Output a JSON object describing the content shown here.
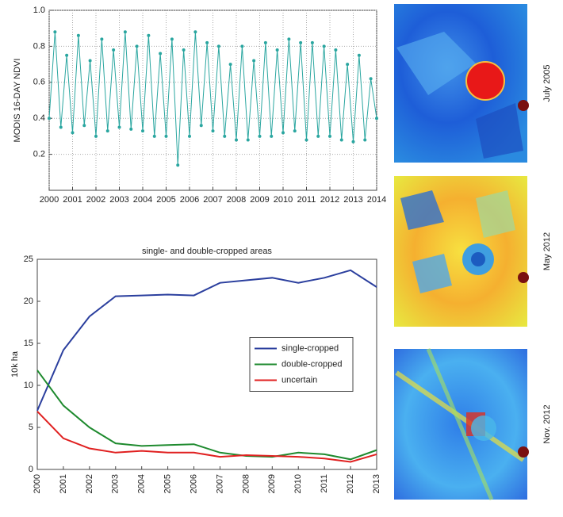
{
  "chart_data": [
    {
      "type": "line",
      "ylabel": "MODIS 16-DAY NDVI",
      "x": [
        2000,
        2000.25,
        2000.5,
        2000.75,
        2001,
        2001.25,
        2001.5,
        2001.75,
        2002,
        2002.25,
        2002.5,
        2002.75,
        2003,
        2003.25,
        2003.5,
        2003.75,
        2004,
        2004.25,
        2004.5,
        2004.75,
        2005,
        2005.25,
        2005.5,
        2005.75,
        2006,
        2006.25,
        2006.5,
        2006.75,
        2007,
        2007.25,
        2007.5,
        2007.75,
        2008,
        2008.25,
        2008.5,
        2008.75,
        2009,
        2009.25,
        2009.5,
        2009.75,
        2010,
        2010.25,
        2010.5,
        2010.75,
        2011,
        2011.25,
        2011.5,
        2011.75,
        2012,
        2012.25,
        2012.5,
        2012.75,
        2013,
        2013.25,
        2013.5,
        2013.75,
        2014
      ],
      "values": [
        0.4,
        0.88,
        0.35,
        0.75,
        0.32,
        0.86,
        0.36,
        0.72,
        0.3,
        0.84,
        0.33,
        0.78,
        0.35,
        0.88,
        0.34,
        0.8,
        0.33,
        0.86,
        0.3,
        0.76,
        0.3,
        0.84,
        0.14,
        0.78,
        0.3,
        0.88,
        0.36,
        0.82,
        0.33,
        0.8,
        0.3,
        0.7,
        0.28,
        0.8,
        0.28,
        0.72,
        0.3,
        0.82,
        0.3,
        0.78,
        0.32,
        0.84,
        0.33,
        0.82,
        0.28,
        0.82,
        0.3,
        0.8,
        0.3,
        0.78,
        0.28,
        0.7,
        0.27,
        0.75,
        0.28,
        0.62,
        0.4
      ],
      "color": "#2aa6a0",
      "xlim": [
        2000,
        2014
      ],
      "xticks": [
        2000,
        2001,
        2002,
        2003,
        2004,
        2005,
        2006,
        2007,
        2008,
        2009,
        2010,
        2011,
        2012,
        2013,
        2014
      ],
      "ylim": [
        0,
        1
      ],
      "yticks": [
        {
          "value": 0.2,
          "label": "0.2"
        },
        {
          "value": 0.4,
          "label": "0.4"
        },
        {
          "value": 0.6,
          "label": "0.6"
        },
        {
          "value": 0.8,
          "label": "0.8"
        },
        {
          "value": 1,
          "label": "1.0"
        }
      ],
      "grid": true
    },
    {
      "type": "line",
      "title": "single- and double-cropped areas",
      "ylabel": "10k ha",
      "x": [
        2000,
        2001,
        2002,
        2003,
        2004,
        2005,
        2006,
        2007,
        2008,
        2009,
        2010,
        2011,
        2012,
        2013
      ],
      "series": [
        {
          "name": "single-cropped",
          "color": "#2b3f9e",
          "values": [
            7,
            14.2,
            18.2,
            20.6,
            20.7,
            20.8,
            20.7,
            22.2,
            22.5,
            22.8,
            22.2,
            22.8,
            23.7,
            21.7
          ]
        },
        {
          "name": "double-cropped",
          "color": "#1e8a2e",
          "values": [
            11.8,
            7.6,
            5,
            3.1,
            2.8,
            2.9,
            3,
            2,
            1.6,
            1.5,
            2,
            1.8,
            1.2,
            2.3
          ]
        },
        {
          "name": "uncertain",
          "color": "#e02020",
          "values": [
            6.9,
            3.7,
            2.5,
            2,
            2.2,
            2,
            2,
            1.5,
            1.7,
            1.6,
            1.5,
            1.3,
            0.9,
            1.8
          ]
        }
      ],
      "xlim": [
        2000,
        2013
      ],
      "xticks": [
        2000,
        2001,
        2002,
        2003,
        2004,
        2005,
        2006,
        2007,
        2008,
        2009,
        2010,
        2011,
        2012,
        2013
      ],
      "ylim": [
        0,
        25
      ],
      "yticks": [
        0,
        5,
        10,
        15,
        20,
        25
      ],
      "grid": false,
      "legend": "right"
    }
  ],
  "images": [
    {
      "label": "July 2005"
    },
    {
      "label": "May 2012"
    },
    {
      "label": "Nov. 2012"
    }
  ]
}
